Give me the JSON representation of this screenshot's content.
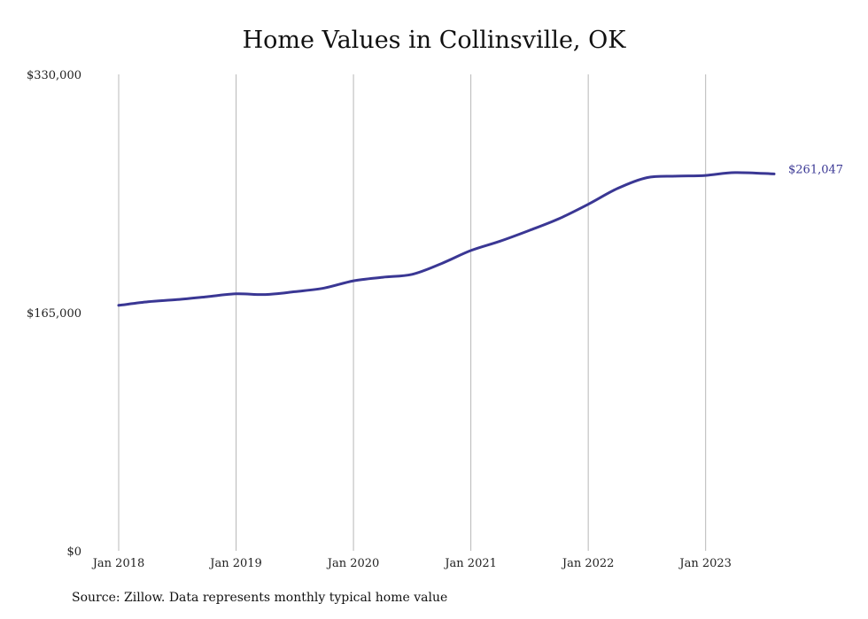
{
  "chart_data": {
    "type": "line",
    "title": "Home Values in Collinsville, OK",
    "xlabel": "",
    "ylabel": "",
    "x_ticks": [
      "Jan 2018",
      "Jan 2019",
      "Jan 2020",
      "Jan 2021",
      "Jan 2022",
      "Jan 2023"
    ],
    "y_ticks": [
      "$0",
      "$165,000",
      "$330,000"
    ],
    "ylim": [
      0,
      330000
    ],
    "xlim": [
      "2018-01",
      "2023-08"
    ],
    "grid": "vertical",
    "series_color": "#3a3794",
    "end_label": "$261,047",
    "series": [
      {
        "x": [
          "2018-01",
          "2018-04",
          "2018-07",
          "2018-10",
          "2019-01",
          "2019-04",
          "2019-07",
          "2019-10",
          "2020-01",
          "2020-04",
          "2020-07",
          "2020-10",
          "2021-01",
          "2021-04",
          "2021-07",
          "2021-10",
          "2022-01",
          "2022-04",
          "2022-07",
          "2022-10",
          "2023-01",
          "2023-04",
          "2023-08"
        ],
        "values": [
          170000,
          172500,
          174000,
          176000,
          178000,
          177500,
          179500,
          182000,
          187000,
          189500,
          191500,
          199000,
          208000,
          214500,
          222000,
          230000,
          240000,
          251000,
          258500,
          259500,
          260000,
          262000,
          261047
        ]
      }
    ]
  },
  "source": "Source: Zillow. Data represents monthly typical home value"
}
